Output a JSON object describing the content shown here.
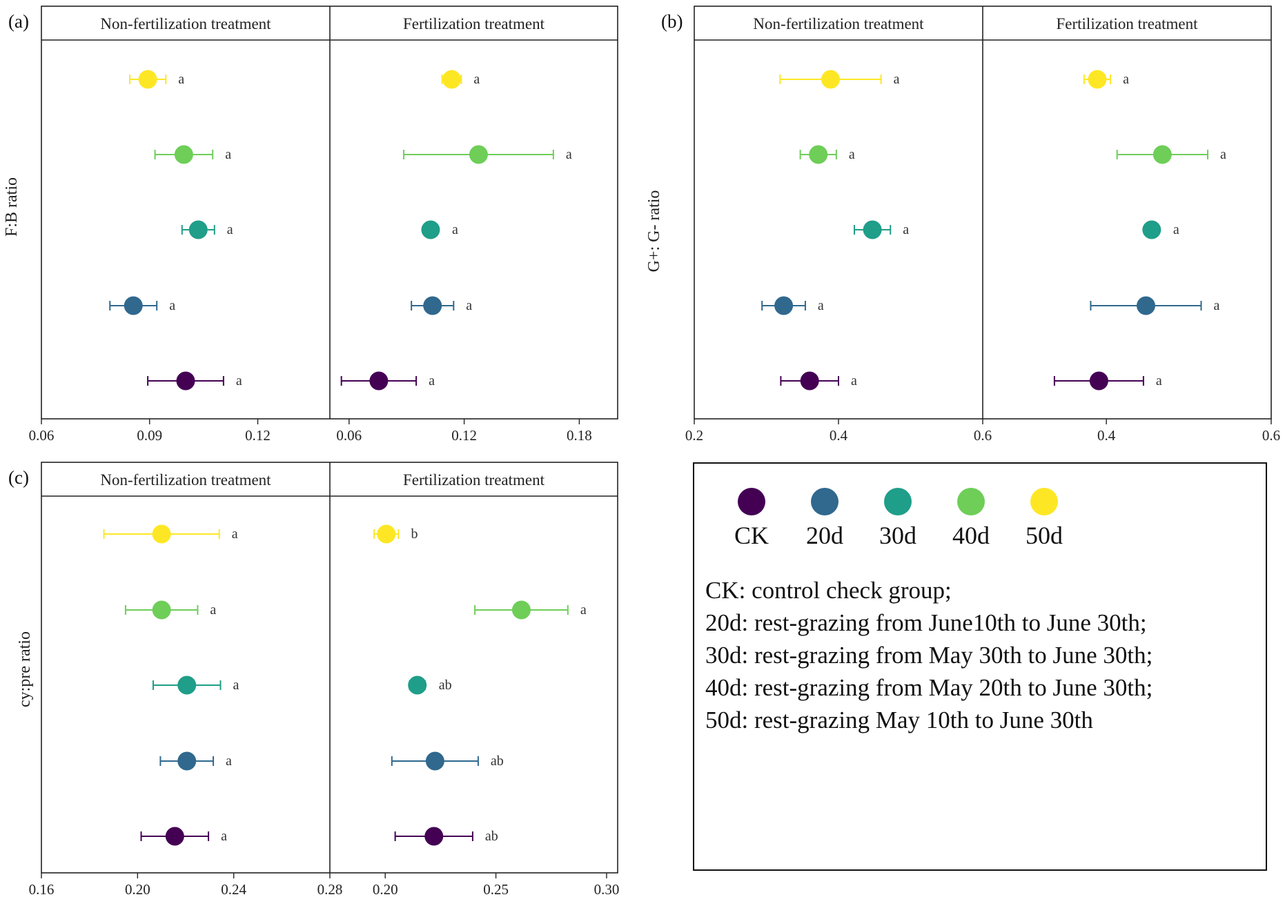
{
  "chart_data": {
    "type": "scatter",
    "subtype": "dot-and-whisker (mean ± error)",
    "groups": [
      "CK",
      "20d",
      "30d",
      "40d",
      "50d"
    ],
    "colors": {
      "CK": "#440154",
      "20d": "#30688e",
      "30d": "#1f9e89",
      "40d": "#6ece58",
      "50d": "#fde725"
    },
    "panels": [
      {
        "label": "(a)",
        "ylabel": "F:B ratio",
        "facets": [
          {
            "title": "Non-fertilization treatment",
            "xlim": [
              0.06,
              0.14
            ],
            "ticks": [
              "0.06",
              "0.09",
              "0.12"
            ],
            "points": [
              {
                "group": "50d",
                "mean": 0.0895,
                "err": 0.005,
                "letter": "a"
              },
              {
                "group": "40d",
                "mean": 0.0995,
                "err": 0.008,
                "letter": "a"
              },
              {
                "group": "30d",
                "mean": 0.1035,
                "err": 0.0045,
                "letter": "a"
              },
              {
                "group": "20d",
                "mean": 0.0855,
                "err": 0.0065,
                "letter": "a"
              },
              {
                "group": "CK",
                "mean": 0.1,
                "err": 0.0105,
                "letter": "a"
              }
            ]
          },
          {
            "title": "Fertilization treatment",
            "xlim": [
              0.05,
              0.2
            ],
            "ticks": [
              "0.06",
              "0.12",
              "0.18"
            ],
            "points": [
              {
                "group": "50d",
                "mean": 0.1135,
                "err": 0.005,
                "letter": "a"
              },
              {
                "group": "40d",
                "mean": 0.1275,
                "err": 0.039,
                "letter": "a"
              },
              {
                "group": "30d",
                "mean": 0.1025,
                "err": 0.0,
                "letter": "a"
              },
              {
                "group": "20d",
                "mean": 0.1035,
                "err": 0.011,
                "letter": "a"
              },
              {
                "group": "CK",
                "mean": 0.0755,
                "err": 0.0195,
                "letter": "a"
              }
            ]
          }
        ]
      },
      {
        "label": "(b)",
        "ylabel": "G+: G- ratio",
        "facets": [
          {
            "title": "Non-fertilization treatment",
            "xlim": [
              0.2,
              0.6
            ],
            "ticks": [
              "0.2",
              "0.4",
              "0.6"
            ],
            "points": [
              {
                "group": "50d",
                "mean": 0.389,
                "err": 0.07,
                "letter": "a"
              },
              {
                "group": "40d",
                "mean": 0.372,
                "err": 0.025,
                "letter": "a"
              },
              {
                "group": "30d",
                "mean": 0.447,
                "err": 0.025,
                "letter": "a"
              },
              {
                "group": "20d",
                "mean": 0.324,
                "err": 0.03,
                "letter": "a"
              },
              {
                "group": "CK",
                "mean": 0.36,
                "err": 0.04,
                "letter": "a"
              }
            ]
          },
          {
            "title": "Fertilization treatment",
            "xlim": [
              0.25,
              0.6
            ],
            "ticks": [
              "0.4",
              "0.6"
            ],
            "points": [
              {
                "group": "50d",
                "mean": 0.389,
                "err": 0.016,
                "letter": "a"
              },
              {
                "group": "40d",
                "mean": 0.468,
                "err": 0.055,
                "letter": "a"
              },
              {
                "group": "30d",
                "mean": 0.455,
                "err": 0.0,
                "letter": "a"
              },
              {
                "group": "20d",
                "mean": 0.448,
                "err": 0.067,
                "letter": "a"
              },
              {
                "group": "CK",
                "mean": 0.391,
                "err": 0.054,
                "letter": "a"
              }
            ]
          }
        ]
      },
      {
        "label": "(c)",
        "ylabel": "cy:pre ratio",
        "facets": [
          {
            "title": "Non-fertilization treatment",
            "xlim": [
              0.16,
              0.28
            ],
            "ticks": [
              "0.16",
              "0.20",
              "0.24",
              "0.28"
            ],
            "points": [
              {
                "group": "50d",
                "mean": 0.21,
                "err": 0.024,
                "letter": "a"
              },
              {
                "group": "40d",
                "mean": 0.21,
                "err": 0.015,
                "letter": "a"
              },
              {
                "group": "30d",
                "mean": 0.2205,
                "err": 0.014,
                "letter": "a"
              },
              {
                "group": "20d",
                "mean": 0.2205,
                "err": 0.011,
                "letter": "a"
              },
              {
                "group": "CK",
                "mean": 0.2155,
                "err": 0.014,
                "letter": "a"
              }
            ]
          },
          {
            "title": "Fertilization treatment",
            "xlim": [
              0.175,
              0.305
            ],
            "ticks": [
              "0.20",
              "0.25",
              "0.30"
            ],
            "points": [
              {
                "group": "50d",
                "mean": 0.2005,
                "err": 0.0055,
                "letter": "b"
              },
              {
                "group": "40d",
                "mean": 0.2615,
                "err": 0.021,
                "letter": "a"
              },
              {
                "group": "30d",
                "mean": 0.2145,
                "err": 0.0035,
                "letter": "ab"
              },
              {
                "group": "20d",
                "mean": 0.2225,
                "err": 0.0195,
                "letter": "ab"
              },
              {
                "group": "CK",
                "mean": 0.222,
                "err": 0.0175,
                "letter": "ab"
              }
            ]
          }
        ]
      }
    ]
  },
  "legend": {
    "items": [
      {
        "label": "CK",
        "color": "#440154"
      },
      {
        "label": "20d",
        "color": "#30688e"
      },
      {
        "label": "30d",
        "color": "#1f9e89"
      },
      {
        "label": "40d",
        "color": "#6ece58"
      },
      {
        "label": "50d",
        "color": "#fde725"
      }
    ],
    "definitions": [
      " CK: control check group;",
      "20d: rest-grazing from June10th to June 30th;",
      "30d: rest-grazing from May 30th to June 30th;",
      "40d: rest-grazing from May 20th to June 30th;",
      "50d: rest-grazing May 10th to June 30th"
    ]
  }
}
